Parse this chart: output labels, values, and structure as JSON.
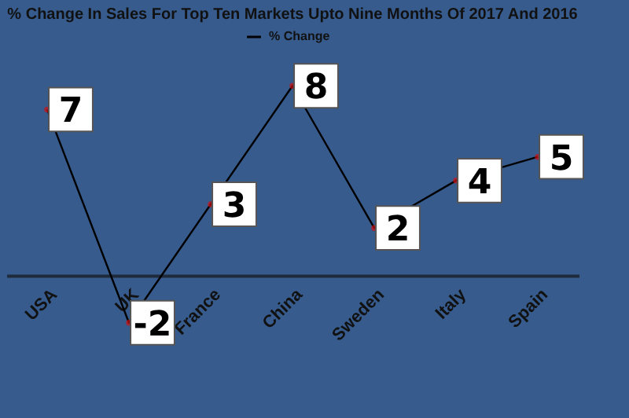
{
  "chart_data": {
    "type": "line",
    "title": "% Change In Sales For Top Ten Markets Upto Nine Months Of 2017 And 2016",
    "categories": [
      "USA",
      "UK",
      "France",
      "China",
      "Sweden",
      "Italy",
      "Spain"
    ],
    "series": [
      {
        "name": "% Change",
        "color": "#000000",
        "values": [
          7,
          -2,
          3,
          8,
          2,
          4,
          5
        ]
      }
    ],
    "data_labels": true,
    "marker": "circle",
    "legend": "top",
    "grid": false
  }
}
